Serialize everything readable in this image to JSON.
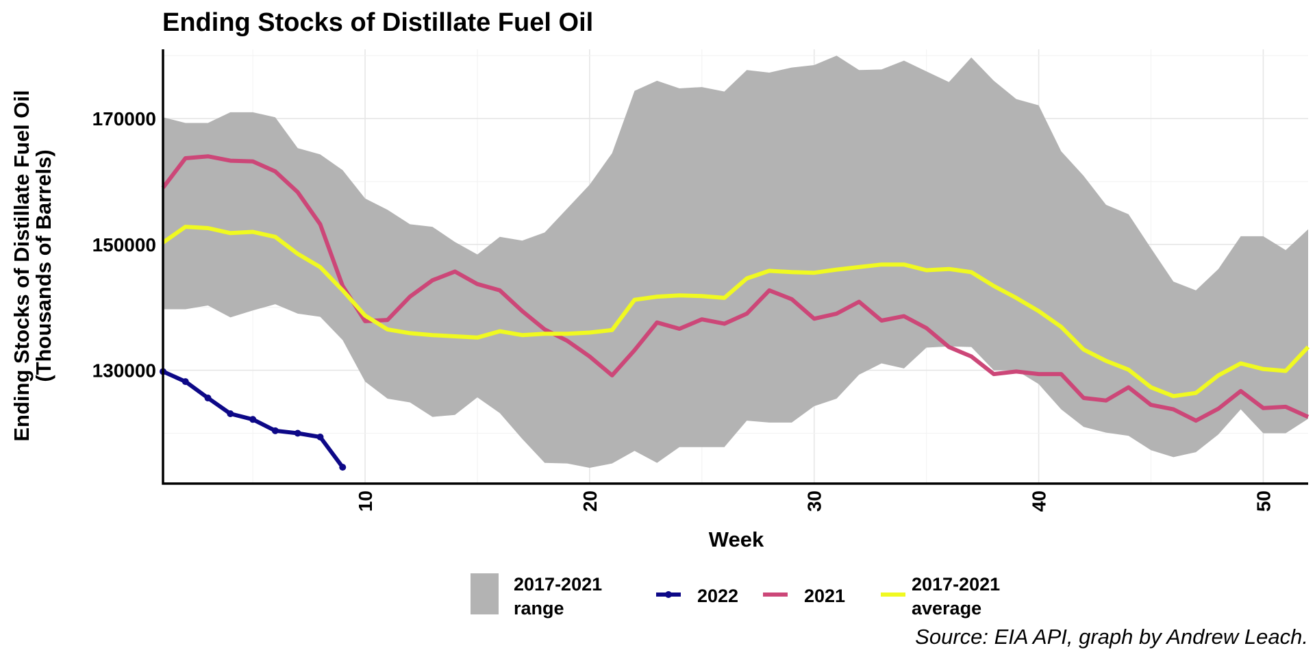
{
  "chart_data": {
    "type": "line",
    "title": "Ending Stocks of Distillate Fuel Oil",
    "xlabel": "Week",
    "ylabel": [
      "Ending Stocks of Distillate Fuel Oil",
      "(Thousands of Barrels)"
    ],
    "caption": "Source: EIA API, graph by Andrew Leach.",
    "xlim": [
      1,
      52
    ],
    "ylim": [
      112000,
      181000
    ],
    "x_ticks": [
      10,
      20,
      30,
      40,
      50
    ],
    "y_ticks": [
      130000,
      150000,
      170000
    ],
    "grid": true,
    "legend_position": "bottom",
    "legend": [
      {
        "label": [
          "2017-2021",
          "range"
        ],
        "kind": "range",
        "color": "#b3b3b3"
      },
      {
        "label": [
          "2022"
        ],
        "kind": "line",
        "color": "#0d0887"
      },
      {
        "label": [
          "2021"
        ],
        "kind": "line",
        "color": "#cc4778"
      },
      {
        "label": [
          "2017-2021",
          "average"
        ],
        "kind": "line",
        "color": "#f0f921"
      }
    ],
    "range": {
      "name": "2017-2021 range",
      "color": "#b3b3b3",
      "x": [
        1,
        2,
        3,
        4,
        5,
        6,
        7,
        8,
        9,
        10,
        11,
        12,
        13,
        14,
        15,
        16,
        17,
        18,
        19,
        20,
        21,
        22,
        23,
        24,
        25,
        26,
        27,
        28,
        29,
        30,
        31,
        32,
        33,
        34,
        35,
        36,
        37,
        38,
        39,
        40,
        41,
        42,
        43,
        44,
        45,
        46,
        47,
        48,
        49,
        50,
        51,
        52
      ],
      "upper": [
        170200,
        169300,
        169300,
        171000,
        171000,
        170200,
        165300,
        164300,
        161800,
        157300,
        155500,
        153200,
        152800,
        150400,
        148400,
        151200,
        150600,
        151900,
        155700,
        159500,
        164500,
        174400,
        176000,
        174800,
        175000,
        174300,
        177700,
        177300,
        178100,
        178500,
        180000,
        177700,
        177800,
        179200,
        177500,
        175800,
        179700,
        176000,
        173100,
        172100,
        164800,
        160900,
        156300,
        154800,
        149400,
        144100,
        142700,
        146100,
        151300,
        151300,
        149100,
        152400
      ],
      "lower": [
        139700,
        139700,
        140300,
        138400,
        139500,
        140500,
        139000,
        138500,
        134800,
        128200,
        125500,
        124900,
        122600,
        122900,
        125700,
        123200,
        119100,
        115300,
        115200,
        114500,
        115200,
        117200,
        115300,
        117800,
        117800,
        117800,
        122000,
        121700,
        121700,
        124300,
        125500,
        129300,
        131100,
        130300,
        133600,
        133800,
        133700,
        130000,
        130000,
        127800,
        123800,
        121000,
        120100,
        119600,
        117300,
        116200,
        117000,
        119800,
        123800,
        120000,
        120000,
        122300
      ]
    },
    "series": [
      {
        "name": "2022",
        "color": "#0d0887",
        "markers": true,
        "x": [
          1,
          2,
          3,
          4,
          5,
          6,
          7,
          8,
          9
        ],
        "y": [
          129800,
          128200,
          125600,
          123100,
          122200,
          120400,
          120000,
          119400,
          114600
        ]
      },
      {
        "name": "2021",
        "color": "#cc4778",
        "markers": false,
        "x": [
          1,
          2,
          3,
          4,
          5,
          6,
          7,
          8,
          9,
          10,
          11,
          12,
          13,
          14,
          15,
          16,
          17,
          18,
          19,
          20,
          21,
          22,
          23,
          24,
          25,
          26,
          27,
          28,
          29,
          30,
          31,
          32,
          33,
          34,
          35,
          36,
          37,
          38,
          39,
          40,
          41,
          42,
          43,
          44,
          45,
          46,
          47,
          48,
          49,
          50,
          51,
          52
        ],
        "y": [
          159000,
          163700,
          164000,
          163300,
          163200,
          161600,
          158300,
          153200,
          143400,
          137800,
          138000,
          141700,
          144300,
          145700,
          143700,
          142700,
          139400,
          136500,
          134700,
          132200,
          129200,
          133200,
          137600,
          136600,
          138100,
          137400,
          139000,
          142700,
          141300,
          138200,
          139000,
          140900,
          137900,
          138600,
          136700,
          133700,
          132200,
          129400,
          129800,
          129400,
          129400,
          125600,
          125200,
          127300,
          124500,
          123800,
          122000,
          123900,
          126700,
          124000,
          124200,
          122600
        ]
      },
      {
        "name": "2017-2021 average",
        "color": "#f0f921",
        "markers": false,
        "x": [
          1,
          2,
          3,
          4,
          5,
          6,
          7,
          8,
          9,
          10,
          11,
          12,
          13,
          14,
          15,
          16,
          17,
          18,
          19,
          20,
          21,
          22,
          23,
          24,
          25,
          26,
          27,
          28,
          29,
          30,
          31,
          32,
          33,
          34,
          35,
          36,
          37,
          38,
          39,
          40,
          41,
          42,
          43,
          44,
          45,
          46,
          47,
          48,
          49,
          50,
          51,
          52
        ],
        "y": [
          150300,
          152800,
          152600,
          151800,
          152000,
          151200,
          148500,
          146400,
          142700,
          138700,
          136500,
          135900,
          135600,
          135400,
          135200,
          136200,
          135600,
          135800,
          135800,
          136000,
          136400,
          141200,
          141700,
          141900,
          141800,
          141500,
          144600,
          145800,
          145600,
          145500,
          146000,
          146400,
          146800,
          146800,
          145900,
          146100,
          145600,
          143400,
          141500,
          139400,
          136900,
          133300,
          131500,
          130100,
          127300,
          125900,
          126400,
          129200,
          131100,
          130200,
          129900,
          133700
        ]
      }
    ]
  }
}
